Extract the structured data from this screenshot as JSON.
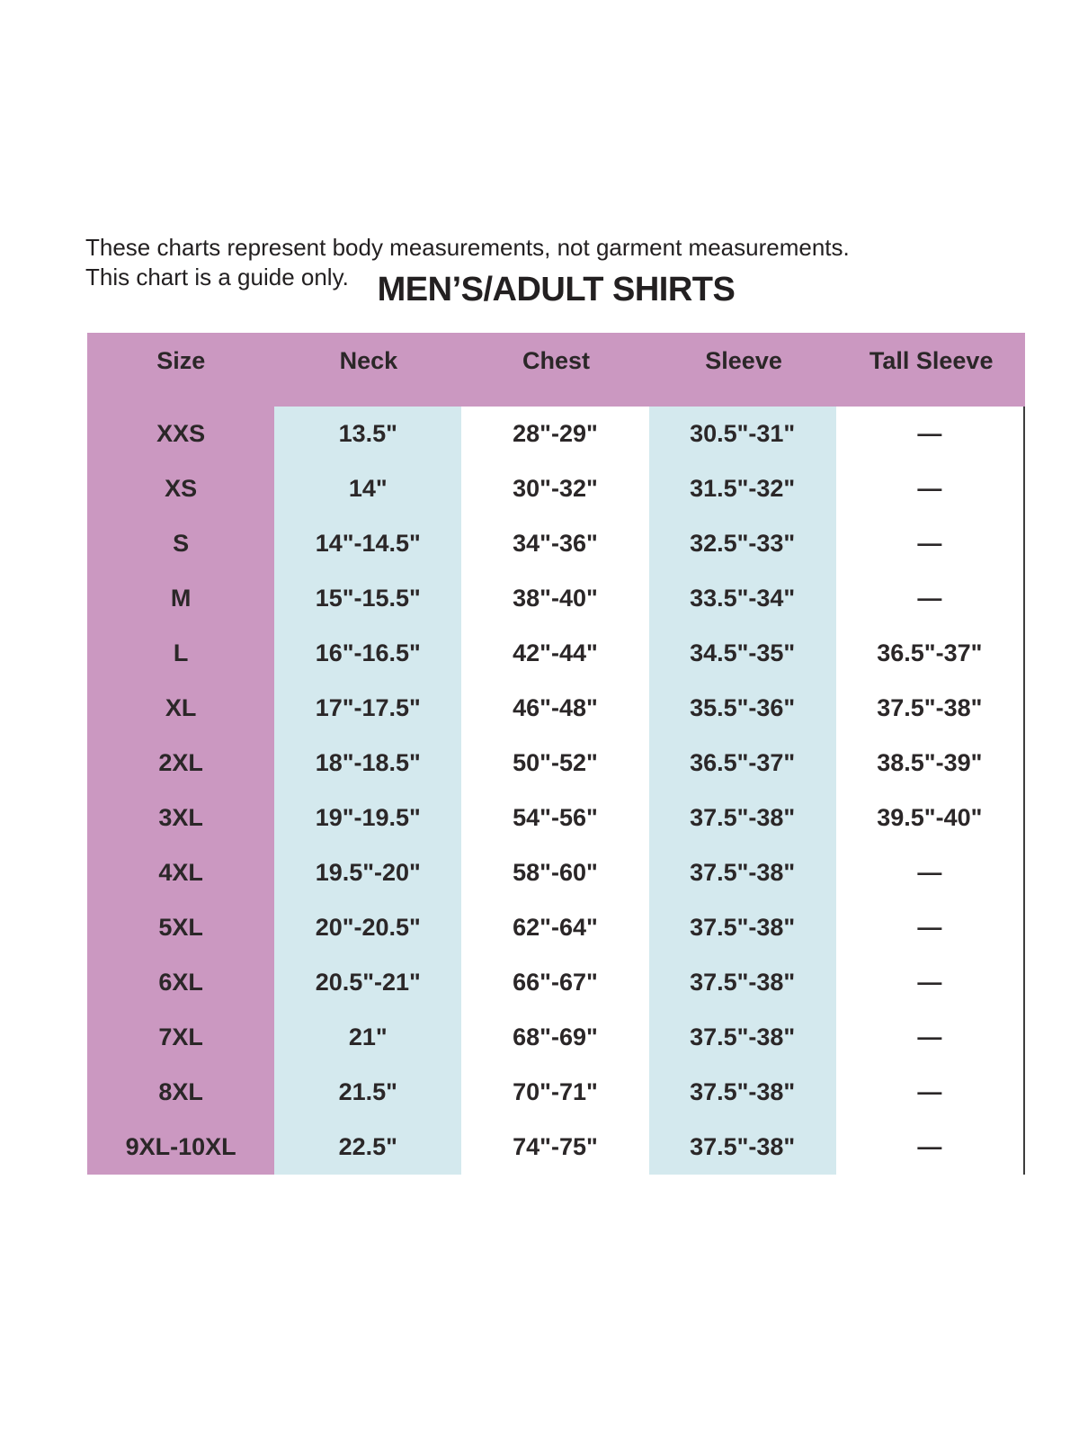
{
  "intro": {
    "line1": "These charts represent body measurements, not garment measurements.",
    "line2": "This chart is a guide only."
  },
  "title": "MEN’S/ADULT SHIRTS",
  "table": {
    "headers": [
      "Size",
      "Neck",
      "Chest",
      "Sleeve",
      "Tall Sleeve"
    ],
    "rows": [
      [
        "XXS",
        "13.5\"",
        "28\"-29\"",
        "30.5\"-31\"",
        "—"
      ],
      [
        "XS",
        "14\"",
        "30\"-32\"",
        "31.5\"-32\"",
        "—"
      ],
      [
        "S",
        "14\"-14.5\"",
        "34\"-36\"",
        "32.5\"-33\"",
        "—"
      ],
      [
        "M",
        "15\"-15.5\"",
        "38\"-40\"",
        "33.5\"-34\"",
        "—"
      ],
      [
        "L",
        "16\"-16.5\"",
        "42\"-44\"",
        "34.5\"-35\"",
        "36.5\"-37\""
      ],
      [
        "XL",
        "17\"-17.5\"",
        "46\"-48\"",
        "35.5\"-36\"",
        "37.5\"-38\""
      ],
      [
        "2XL",
        "18\"-18.5\"",
        "50\"-52\"",
        "36.5\"-37\"",
        "38.5\"-39\""
      ],
      [
        "3XL",
        "19\"-19.5\"",
        "54\"-56\"",
        "37.5\"-38\"",
        "39.5\"-40\""
      ],
      [
        "4XL",
        "19.5\"-20\"",
        "58\"-60\"",
        "37.5\"-38\"",
        "—"
      ],
      [
        "5XL",
        "20\"-20.5\"",
        "62\"-64\"",
        "37.5\"-38\"",
        "—"
      ],
      [
        "6XL",
        "20.5\"-21\"",
        "66\"-67\"",
        "37.5\"-38\"",
        "—"
      ],
      [
        "7XL",
        "21\"",
        "68\"-69\"",
        "37.5\"-38\"",
        "—"
      ],
      [
        "8XL",
        "21.5\"",
        "70\"-71\"",
        "37.5\"-38\"",
        "—"
      ],
      [
        "9XL-10XL",
        "22.5\"",
        "74\"-75\"",
        "37.5\"-38\"",
        "—"
      ]
    ]
  },
  "colors": {
    "header_pink": "#cb98c1",
    "column_blue": "#d4e9ee",
    "text": "#2b2728",
    "right_border_line": "#3d3d3d",
    "background": "#ffffff"
  }
}
